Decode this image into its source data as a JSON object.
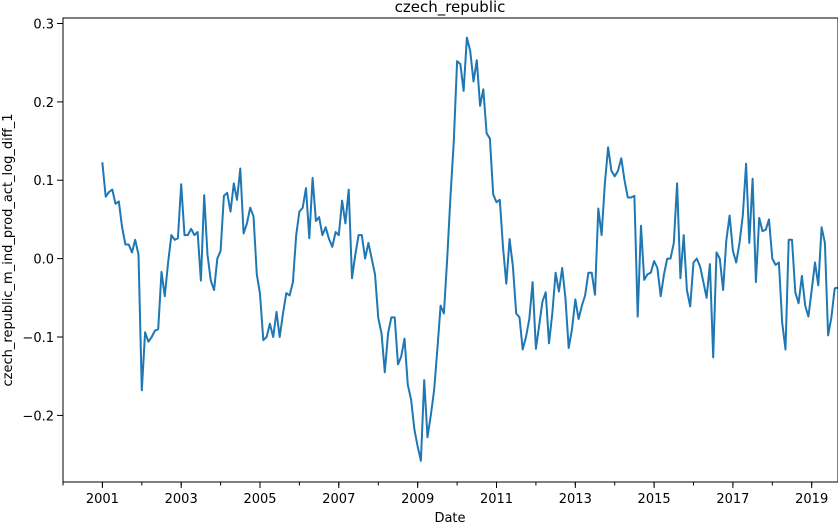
{
  "chart_data": {
    "type": "line",
    "title": "czech_republic",
    "xlabel": "Date",
    "ylabel": "czech_republic_m_ind_prod_act_log_diff_1",
    "xlim": [
      "2000-01-01",
      "2019-09-01"
    ],
    "ylim": [
      -0.285,
      0.307
    ],
    "x_ticks": [
      "2001",
      "2003",
      "2005",
      "2007",
      "2009",
      "2011",
      "2013",
      "2015",
      "2017",
      "2019"
    ],
    "y_ticks": [
      -0.2,
      -0.1,
      0.0,
      0.1,
      0.2,
      0.3
    ],
    "y_tick_labels": [
      "−0.2",
      "−0.1",
      "0.0",
      "0.1",
      "0.2",
      "0.3"
    ],
    "grid": false,
    "colors": {
      "line": "#1f77b4",
      "axis": "#000000"
    },
    "series": [
      {
        "x": [
          "2001-01",
          "2001-02",
          "2001-03",
          "2001-04",
          "2001-05",
          "2001-06",
          "2001-07",
          "2001-08",
          "2001-09",
          "2001-10",
          "2001-11",
          "2001-12",
          "2002-01",
          "2002-02",
          "2002-03",
          "2002-04",
          "2002-05",
          "2002-06",
          "2002-07",
          "2002-08",
          "2002-09",
          "2002-10",
          "2002-11",
          "2002-12",
          "2003-01",
          "2003-02",
          "2003-03",
          "2003-04",
          "2003-05",
          "2003-06",
          "2003-07",
          "2003-08",
          "2003-09",
          "2003-10",
          "2003-11",
          "2003-12",
          "2004-01",
          "2004-02",
          "2004-03",
          "2004-04",
          "2004-05",
          "2004-06",
          "2004-07",
          "2004-08",
          "2004-09",
          "2004-10",
          "2004-11",
          "2004-12",
          "2005-01",
          "2005-02",
          "2005-03",
          "2005-04",
          "2005-05",
          "2005-06",
          "2005-07",
          "2005-08",
          "2005-09",
          "2005-10",
          "2005-11",
          "2005-12",
          "2006-01",
          "2006-02",
          "2006-03",
          "2006-04",
          "2006-05",
          "2006-06",
          "2006-07",
          "2006-08",
          "2006-09",
          "2006-10",
          "2006-11",
          "2006-12",
          "2007-01",
          "2007-02",
          "2007-03",
          "2007-04",
          "2007-05",
          "2007-06",
          "2007-07",
          "2007-08",
          "2007-09",
          "2007-10",
          "2007-11",
          "2007-12",
          "2008-01",
          "2008-02",
          "2008-03",
          "2008-04",
          "2008-05",
          "2008-06",
          "2008-07",
          "2008-08",
          "2008-09",
          "2008-10",
          "2008-11",
          "2008-12",
          "2009-01",
          "2009-02",
          "2009-03",
          "2009-04",
          "2009-05",
          "2009-06",
          "2009-07",
          "2009-08",
          "2009-09",
          "2009-10",
          "2009-11",
          "2009-12",
          "2010-01",
          "2010-02",
          "2010-03",
          "2010-04",
          "2010-05",
          "2010-06",
          "2010-07",
          "2010-08",
          "2010-09",
          "2010-10",
          "2010-11",
          "2010-12",
          "2011-01",
          "2011-02",
          "2011-03",
          "2011-04",
          "2011-05",
          "2011-06",
          "2011-07",
          "2011-08",
          "2011-09",
          "2011-10",
          "2011-11",
          "2011-12",
          "2012-01",
          "2012-02",
          "2012-03",
          "2012-04",
          "2012-05",
          "2012-06",
          "2012-07",
          "2012-08",
          "2012-09",
          "2012-10",
          "2012-11",
          "2012-12",
          "2013-01",
          "2013-02",
          "2013-03",
          "2013-04",
          "2013-05",
          "2013-06",
          "2013-07",
          "2013-08",
          "2013-09",
          "2013-10",
          "2013-11",
          "2013-12",
          "2014-01",
          "2014-02",
          "2014-03",
          "2014-04",
          "2014-05",
          "2014-06",
          "2014-07",
          "2014-08",
          "2014-09",
          "2014-10",
          "2014-11",
          "2014-12",
          "2015-01",
          "2015-02",
          "2015-03",
          "2015-04",
          "2015-05",
          "2015-06",
          "2015-07",
          "2015-08",
          "2015-09",
          "2015-10",
          "2015-11",
          "2015-12",
          "2016-01",
          "2016-02",
          "2016-03",
          "2016-04",
          "2016-05",
          "2016-06",
          "2016-07",
          "2016-08",
          "2016-09",
          "2016-10",
          "2016-11",
          "2016-12",
          "2017-01",
          "2017-02",
          "2017-03",
          "2017-04",
          "2017-05",
          "2017-06",
          "2017-07",
          "2017-08",
          "2017-09",
          "2017-10",
          "2017-11",
          "2017-12",
          "2018-01",
          "2018-02",
          "2018-03",
          "2018-04",
          "2018-05",
          "2018-06",
          "2018-07",
          "2018-08",
          "2018-09",
          "2018-10",
          "2018-11",
          "2018-12",
          "2019-01",
          "2019-02",
          "2019-03",
          "2019-04",
          "2019-05",
          "2019-06",
          "2019-07",
          "2019-08",
          "2019-09"
        ],
        "values": [
          0.122,
          0.079,
          0.085,
          0.088,
          0.07,
          0.073,
          0.04,
          0.018,
          0.018,
          0.008,
          0.024,
          0.005,
          -0.168,
          -0.094,
          -0.106,
          -0.1,
          -0.092,
          -0.09,
          -0.017,
          -0.048,
          -0.005,
          0.03,
          0.024,
          0.026,
          0.095,
          0.03,
          0.03,
          0.038,
          0.03,
          0.034,
          -0.028,
          0.081,
          0.005,
          -0.028,
          -0.04,
          0.0,
          0.01,
          0.08,
          0.084,
          0.06,
          0.096,
          0.075,
          0.115,
          0.032,
          0.045,
          0.065,
          0.054,
          -0.02,
          -0.045,
          -0.104,
          -0.1,
          -0.083,
          -0.1,
          -0.068,
          -0.1,
          -0.07,
          -0.044,
          -0.047,
          -0.03,
          0.03,
          0.06,
          0.065,
          0.09,
          0.026,
          0.103,
          0.048,
          0.053,
          0.03,
          0.04,
          0.025,
          0.015,
          0.034,
          0.03,
          0.074,
          0.045,
          0.088,
          -0.025,
          0.005,
          0.03,
          0.03,
          0.0,
          0.02,
          0.0,
          -0.02,
          -0.076,
          -0.095,
          -0.145,
          -0.095,
          -0.075,
          -0.075,
          -0.135,
          -0.125,
          -0.102,
          -0.161,
          -0.18,
          -0.218,
          -0.24,
          -0.258,
          -0.155,
          -0.228,
          -0.2,
          -0.168,
          -0.115,
          -0.06,
          -0.07,
          0.0,
          0.08,
          0.15,
          0.252,
          0.248,
          0.214,
          0.282,
          0.265,
          0.226,
          0.253,
          0.195,
          0.216,
          0.16,
          0.153,
          0.082,
          0.072,
          0.075,
          0.015,
          -0.032,
          0.025,
          -0.01,
          -0.07,
          -0.075,
          -0.116,
          -0.1,
          -0.077,
          -0.03,
          -0.115,
          -0.085,
          -0.055,
          -0.043,
          -0.108,
          -0.07,
          -0.018,
          -0.042,
          -0.012,
          -0.05,
          -0.114,
          -0.09,
          -0.052,
          -0.077,
          -0.06,
          -0.047,
          -0.018,
          -0.018,
          -0.046,
          0.064,
          0.03,
          0.095,
          0.142,
          0.112,
          0.105,
          0.112,
          0.128,
          0.1,
          0.078,
          0.078,
          0.08,
          -0.074,
          0.042,
          -0.027,
          -0.02,
          -0.018,
          -0.003,
          -0.012,
          -0.048,
          -0.02,
          0.0,
          0.0,
          0.02,
          0.096,
          -0.025,
          0.03,
          -0.04,
          -0.061,
          -0.005,
          0.0,
          -0.01,
          -0.03,
          -0.05,
          -0.007,
          -0.126,
          0.008,
          0.0,
          -0.04,
          0.023,
          0.055,
          0.01,
          -0.005,
          0.02,
          0.055,
          0.121,
          0.02,
          0.102,
          -0.03,
          0.052,
          0.035,
          0.037,
          0.05,
          0.0,
          -0.008,
          -0.005,
          -0.082,
          -0.116,
          0.024,
          0.024,
          -0.043,
          -0.057,
          -0.022,
          -0.06,
          -0.074,
          -0.04,
          -0.005,
          -0.034,
          0.04,
          0.02,
          -0.098,
          -0.075,
          -0.038,
          -0.037
        ]
      }
    ]
  }
}
